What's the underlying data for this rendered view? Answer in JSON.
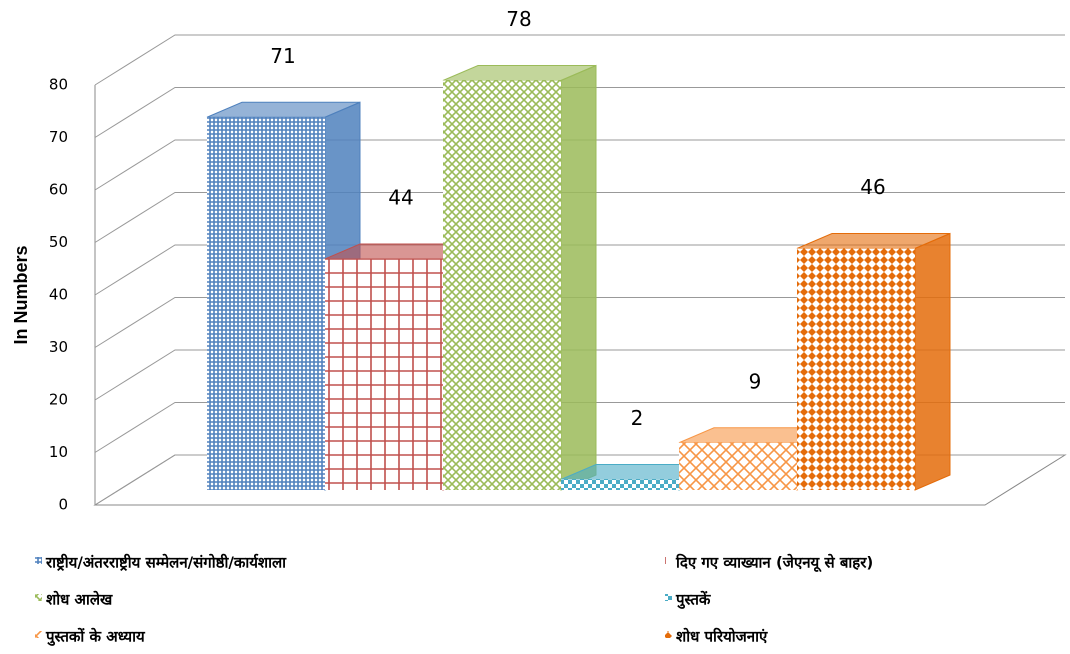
{
  "chart_data": {
    "type": "bar3d",
    "y_label": "In Numbers",
    "ylim": [
      0,
      80
    ],
    "yticks": [
      0,
      10,
      20,
      30,
      40,
      50,
      60,
      70,
      80
    ],
    "grid": true,
    "legend": "bottom",
    "series": [
      {
        "name": "राष्ट्रीय/अंतरराष्ट्रीय  सम्मेलन/संगोष्ठी/कार्यशाला",
        "color": "#4f81bd",
        "values": [
          71
        ]
      },
      {
        "name": "दिए गए व्याख्यान (जेएनयू से बाहर)",
        "color": "#c0504d",
        "values": [
          44
        ]
      },
      {
        "name": "शोध आलेख",
        "color": "#9bbb59",
        "values": [
          78
        ]
      },
      {
        "name": "पुस्तकें",
        "color": "#4bacc6",
        "values": [
          2
        ]
      },
      {
        "name": "पुस्तकों के अध्याय",
        "color": "#f79646",
        "values": [
          9
        ]
      },
      {
        "name": "शोध परियोजनाएं",
        "color": "#e46c0a",
        "values": [
          46
        ]
      }
    ]
  }
}
